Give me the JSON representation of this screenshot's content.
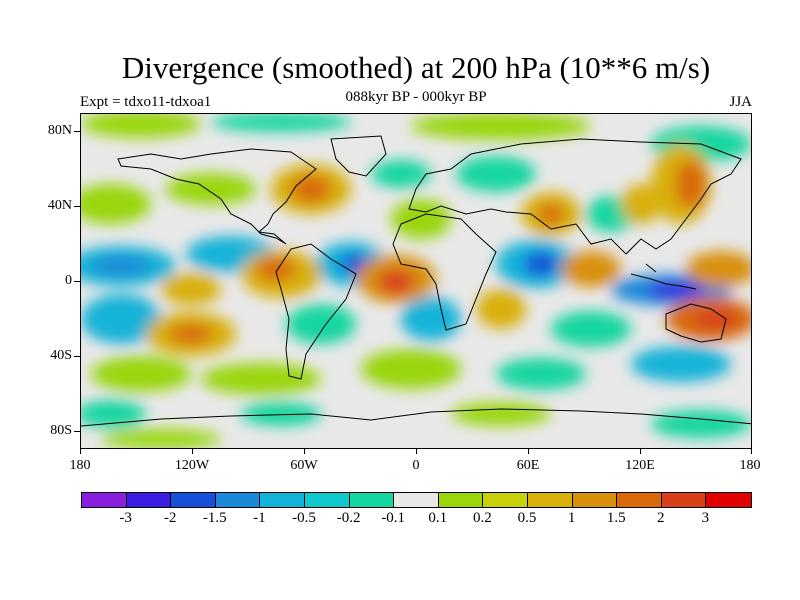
{
  "title": "Divergence (smoothed) at 200 hPa (10**6 m/s)",
  "subtitle": "088kyr BP - 000kyr BP",
  "experiment": "Expt = tdxo11-tdxoa1",
  "season": "JJA",
  "lat_labels": [
    "80N",
    "40N",
    "0",
    "40S",
    "80S"
  ],
  "lon_labels": [
    "180",
    "120W",
    "60W",
    "0",
    "60E",
    "120E",
    "180"
  ],
  "colorbar": {
    "colors": [
      "#8a1fe0",
      "#3a1de0",
      "#1450d8",
      "#1a8ad8",
      "#12b3d8",
      "#10c9cf",
      "#14d6a0",
      "#e8e8e8",
      "#9ad60a",
      "#c8d00a",
      "#d8b00a",
      "#d8900a",
      "#d86a0a",
      "#d8401a",
      "#e00000"
    ],
    "labels": [
      "-3",
      "-2",
      "-1.5",
      "-1",
      "-0.5",
      "-0.2",
      "-0.1",
      "0.1",
      "0.2",
      "0.5",
      "1",
      "1.5",
      "2",
      "3"
    ]
  }
}
